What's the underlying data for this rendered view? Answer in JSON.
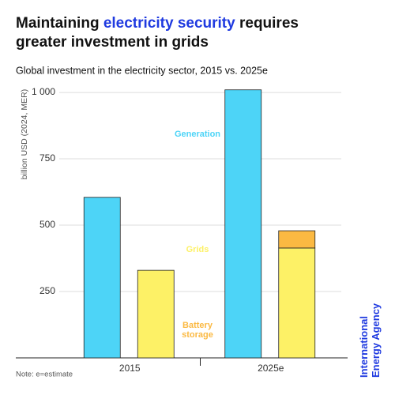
{
  "chart_data": {
    "type": "bar",
    "title_lines": [
      [
        "Maintaining ",
        "electricity security",
        " requires"
      ],
      "greater investment in grids"
    ],
    "subtitle": "Global investment in the electricity sector, 2015 vs. 2025e",
    "y_label": "billion USD (2024, MER)",
    "note": "Note: e=estimate",
    "source_lines": [
      "International",
      "Energy Agency"
    ],
    "categories": [
      "2015",
      "2025e"
    ],
    "series": [
      {
        "name": "Generation",
        "color": "#4dd4f7",
        "values": [
          605,
          1010
        ]
      },
      {
        "name": "Grids",
        "color": "#fdf166",
        "values": [
          330,
          414
        ]
      },
      {
        "name": "Battery storage",
        "color": "#fbb942",
        "values": [
          null,
          65
        ]
      }
    ],
    "ylim": [
      0,
      1030
    ],
    "yticks": [
      250,
      500,
      750,
      {
        "value": 1000,
        "label": "1 000"
      }
    ],
    "grid": true
  }
}
